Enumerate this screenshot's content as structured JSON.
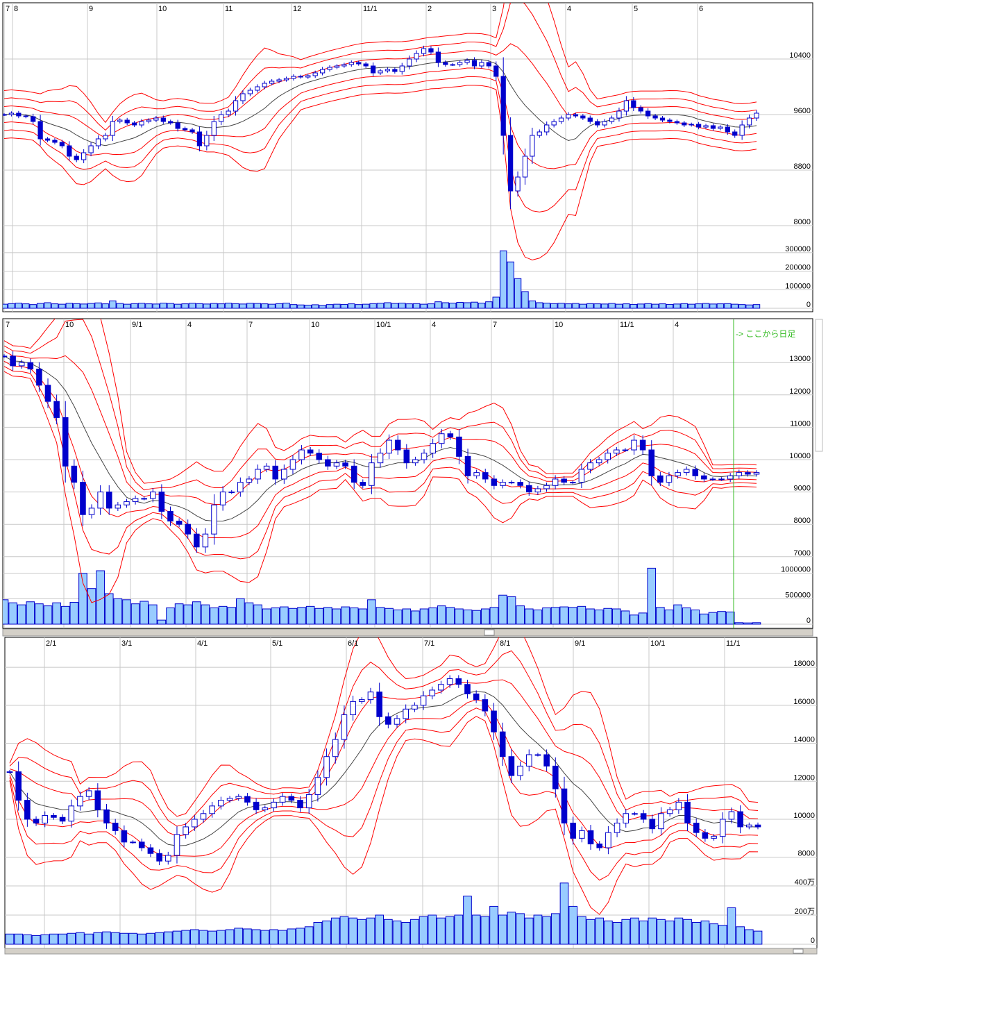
{
  "colors": {
    "up_candle": "#ffffff",
    "down_candle": "#0000cc",
    "candle_border": "#0000cc",
    "volume": "#99ccff",
    "band": "#ff0000",
    "moving_average": "#444444",
    "grid": "#c8c8c8",
    "marker": "#33bb22"
  },
  "annotation": "-> ここから日足",
  "chart_data": [
    {
      "type": "candlestick",
      "grid": true,
      "x_ticks": [
        "7",
        "8",
        "9",
        "10",
        "11",
        "12",
        "11/1",
        "2",
        "3",
        "4",
        "5",
        "6"
      ],
      "y_ticks": [
        10400,
        9600,
        8800,
        8000
      ],
      "y_tick_labels": [
        "10400",
        "9600",
        "8800",
        "8000"
      ],
      "volume_ticks": [
        300000,
        200000,
        100000,
        0
      ],
      "volume_tick_labels": [
        "300000",
        "200000",
        "100000",
        "0"
      ],
      "close": [
        9600,
        9620,
        9580,
        9570,
        9500,
        9250,
        9230,
        9200,
        9150,
        9000,
        8950,
        9050,
        9150,
        9250,
        9300,
        9500,
        9520,
        9480,
        9450,
        9500,
        9520,
        9550,
        9500,
        9480,
        9400,
        9380,
        9350,
        9150,
        9300,
        9500,
        9600,
        9650,
        9800,
        9900,
        9950,
        10000,
        10050,
        10080,
        10100,
        10120,
        10150,
        10140,
        10160,
        10200,
        10250,
        10280,
        10300,
        10320,
        10350,
        10330,
        10300,
        10200,
        10230,
        10250,
        10220,
        10300,
        10400,
        10480,
        10550,
        10500,
        10350,
        10320,
        10320,
        10350,
        10380,
        10300,
        10350,
        10300,
        10150,
        9300,
        8500,
        8700,
        9000,
        9300,
        9350,
        9450,
        9500,
        9550,
        9600,
        9580,
        9550,
        9500,
        9450,
        9500,
        9550,
        9650,
        9800,
        9700,
        9650,
        9580,
        9550,
        9520,
        9500,
        9480,
        9450,
        9460,
        9420,
        9440,
        9400,
        9420,
        9350,
        9300,
        9450,
        9550,
        9620
      ],
      "volume": [
        22000,
        25000,
        28000,
        24000,
        20000,
        26000,
        30000,
        24000,
        22000,
        27000,
        25000,
        23000,
        26000,
        29000,
        24000,
        40000,
        26000,
        22000,
        25000,
        27000,
        24000,
        23000,
        28000,
        26000,
        22000,
        24000,
        27000,
        25000,
        23000,
        26000,
        24000,
        28000,
        25000,
        23000,
        27000,
        26000,
        24000,
        22000,
        25000,
        28000,
        20000,
        18000,
        17000,
        19000,
        16000,
        20000,
        22000,
        21000,
        24000,
        20000,
        22000,
        25000,
        27000,
        30000,
        26000,
        28000,
        24000,
        25000,
        22000,
        24000,
        35000,
        30000,
        28000,
        32000,
        30000,
        33000,
        28000,
        35000,
        60000,
        310000,
        250000,
        160000,
        90000,
        40000,
        30000,
        28000,
        25000,
        27000,
        24000,
        26000,
        22000,
        25000,
        24000,
        23000,
        26000,
        22000,
        24000,
        21000,
        23000,
        25000,
        22000,
        24000,
        21000,
        23000,
        25000,
        22000,
        24000,
        26000,
        23000,
        24000,
        25000,
        22000,
        20000,
        18000,
        20000
      ]
    },
    {
      "type": "candlestick",
      "grid": true,
      "x_ticks": [
        "7",
        "10",
        "9/1",
        "4",
        "7",
        "10",
        "10/1",
        "4",
        "7",
        "10",
        "11/1",
        "4"
      ],
      "y_ticks": [
        13000,
        12000,
        11000,
        10000,
        9000,
        8000,
        7000
      ],
      "y_tick_labels": [
        "13000",
        "12000",
        "11000",
        "10000",
        "9000",
        "8000",
        "7000"
      ],
      "volume_ticks": [
        1000000,
        500000,
        0
      ],
      "volume_tick_labels": [
        "1000000",
        "500000",
        "0"
      ],
      "close": [
        13200,
        12900,
        13000,
        12800,
        12300,
        11800,
        11300,
        9800,
        9300,
        8300,
        8500,
        9000,
        8500,
        8600,
        8700,
        8800,
        8800,
        9000,
        8400,
        8100,
        8000,
        7700,
        7300,
        7700,
        8600,
        9000,
        9000,
        9300,
        9400,
        9700,
        9800,
        9400,
        9700,
        10000,
        10300,
        10200,
        10000,
        9800,
        9900,
        9800,
        9300,
        9200,
        9900,
        10200,
        10600,
        10300,
        9900,
        10000,
        10200,
        10500,
        10800,
        10700,
        10100,
        9500,
        9600,
        9400,
        9200,
        9300,
        9300,
        9200,
        9000,
        9100,
        9200,
        9400,
        9300,
        9300,
        9700,
        9900,
        10000,
        10200,
        10300,
        10300,
        10600,
        10300,
        9500,
        9300,
        9500,
        9600,
        9700,
        9500,
        9400,
        9400,
        9400,
        9500,
        9600,
        9550,
        9600
      ],
      "volume": [
        480000,
        420000,
        380000,
        440000,
        400000,
        360000,
        420000,
        350000,
        430000,
        1000000,
        700000,
        1050000,
        600000,
        500000,
        480000,
        400000,
        450000,
        380000,
        80000,
        320000,
        400000,
        380000,
        440000,
        380000,
        320000,
        350000,
        330000,
        500000,
        420000,
        380000,
        300000,
        320000,
        340000,
        310000,
        330000,
        350000,
        310000,
        330000,
        300000,
        340000,
        320000,
        300000,
        480000,
        330000,
        310000,
        280000,
        300000,
        260000,
        300000,
        320000,
        360000,
        330000,
        300000,
        280000,
        270000,
        300000,
        330000,
        570000,
        540000,
        360000,
        300000,
        280000,
        320000,
        330000,
        340000,
        330000,
        350000,
        300000,
        280000,
        310000,
        300000,
        260000,
        180000,
        220000,
        1100000,
        330000,
        280000,
        380000,
        320000,
        280000,
        200000,
        230000,
        250000,
        240000,
        30000,
        25000,
        30000
      ]
    },
    {
      "type": "candlestick",
      "grid": true,
      "x_ticks": [
        "2/1",
        "3/1",
        "4/1",
        "5/1",
        "6/1",
        "7/1",
        "8/1",
        "9/1",
        "10/1",
        "11/1"
      ],
      "y_ticks": [
        18000,
        16000,
        14000,
        12000,
        10000,
        8000
      ],
      "y_tick_labels": [
        "18000",
        "16000",
        "14000",
        "12000",
        "10000",
        "8000"
      ],
      "volume_ticks": [
        400,
        200,
        0
      ],
      "volume_tick_labels": [
        "400万",
        "200万",
        "0"
      ],
      "close": [
        12500,
        11000,
        10000,
        9800,
        10200,
        10100,
        9900,
        10700,
        11200,
        11500,
        10500,
        9800,
        9400,
        8800,
        8800,
        8500,
        8200,
        7800,
        8100,
        9200,
        9600,
        10000,
        10300,
        10700,
        11000,
        11100,
        11200,
        10900,
        10500,
        10600,
        10900,
        11200,
        11000,
        10600,
        11300,
        12200,
        13300,
        14200,
        15500,
        16200,
        16300,
        16700,
        15400,
        15000,
        15300,
        15800,
        16000,
        16500,
        16800,
        17100,
        17400,
        17100,
        16600,
        16300,
        15700,
        14600,
        13300,
        12300,
        12800,
        13400,
        13400,
        12800,
        11600,
        9800,
        9000,
        9400,
        8700,
        8500,
        9300,
        9800,
        10300,
        10300,
        10000,
        9500,
        10300,
        10500,
        10900,
        9800,
        9300,
        9000,
        9100,
        10000,
        10400,
        9600,
        9700,
        9600
      ],
      "volume": [
        70,
        70,
        65,
        60,
        65,
        70,
        70,
        75,
        80,
        70,
        80,
        85,
        80,
        75,
        75,
        70,
        75,
        80,
        85,
        90,
        95,
        100,
        95,
        90,
        95,
        100,
        110,
        105,
        100,
        95,
        100,
        95,
        105,
        110,
        120,
        150,
        160,
        180,
        190,
        180,
        170,
        180,
        200,
        170,
        160,
        150,
        170,
        190,
        200,
        180,
        190,
        200,
        330,
        200,
        190,
        260,
        200,
        220,
        210,
        180,
        200,
        190,
        210,
        420,
        260,
        190,
        170,
        180,
        160,
        150,
        170,
        180,
        160,
        180,
        170,
        160,
        180,
        170,
        150,
        160,
        140,
        130,
        250,
        120,
        100,
        90
      ]
    }
  ]
}
